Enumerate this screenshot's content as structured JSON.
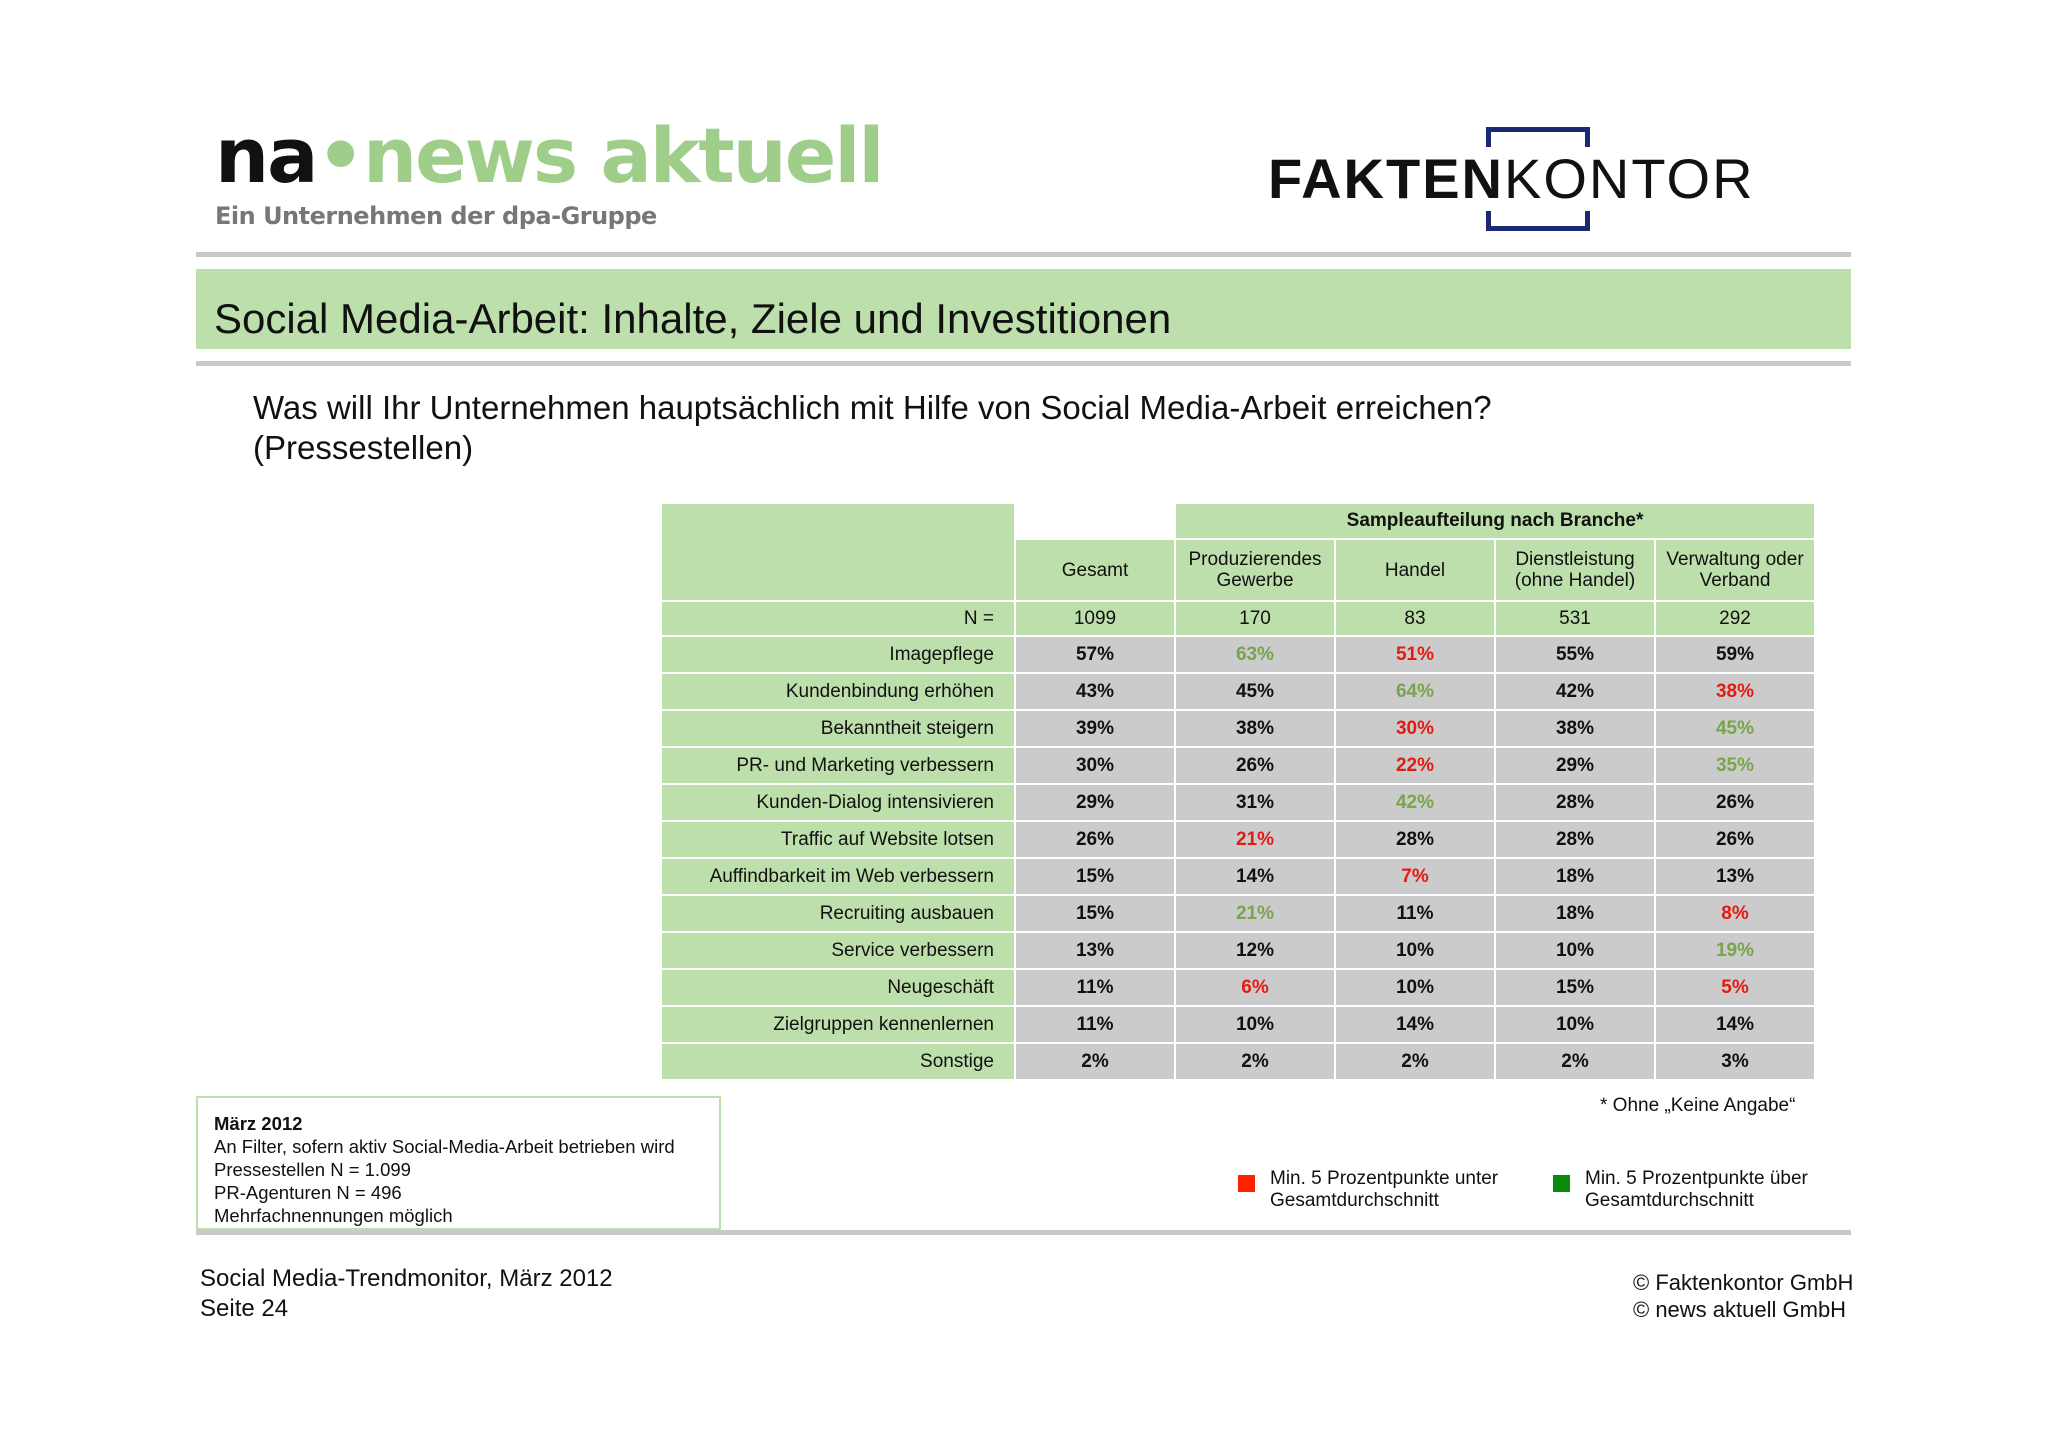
{
  "logos": {
    "news_aktuell": {
      "na": "na",
      "dot": "•",
      "name": "news aktuell",
      "tagline": "Ein Unternehmen der dpa-Gruppe"
    },
    "faktenkontor": {
      "bold": "FAKTEN",
      "light": "KONTOR",
      "brand_color": "#1b2873"
    }
  },
  "title": "Social Media-Arbeit: Inhalte, Ziele und Investitionen",
  "question": {
    "line1": "Was will Ihr Unternehmen hauptsächlich mit Hilfe von Social Media-Arbeit erreichen?",
    "line2": "(Pressestellen)"
  },
  "table": {
    "group_header": "Sampleaufteilung nach Branche*",
    "columns": [
      {
        "line1": "Gesamt",
        "line2": ""
      },
      {
        "line1": "Produzierendes",
        "line2": "Gewerbe"
      },
      {
        "line1": "Handel",
        "line2": ""
      },
      {
        "line1": "Dienstleistung",
        "line2": "(ohne Handel)"
      },
      {
        "line1": "Verwaltung oder",
        "line2": "Verband"
      }
    ],
    "n_label": "N =",
    "n_values": [
      "1099",
      "170",
      "83",
      "531",
      "292"
    ],
    "rows": [
      {
        "label": "Imagepflege",
        "values": [
          "57%",
          "63%",
          "51%",
          "55%",
          "59%"
        ],
        "marks": [
          "",
          "g",
          "r",
          "",
          ""
        ]
      },
      {
        "label": "Kundenbindung erhöhen",
        "values": [
          "43%",
          "45%",
          "64%",
          "42%",
          "38%"
        ],
        "marks": [
          "",
          "",
          "g",
          "",
          "r"
        ]
      },
      {
        "label": "Bekanntheit steigern",
        "values": [
          "39%",
          "38%",
          "30%",
          "38%",
          "45%"
        ],
        "marks": [
          "",
          "",
          "r",
          "",
          "g"
        ]
      },
      {
        "label": "PR- und Marketing verbessern",
        "values": [
          "30%",
          "26%",
          "22%",
          "29%",
          "35%"
        ],
        "marks": [
          "",
          "",
          "r",
          "",
          "g"
        ]
      },
      {
        "label": "Kunden-Dialog intensivieren",
        "values": [
          "29%",
          "31%",
          "42%",
          "28%",
          "26%"
        ],
        "marks": [
          "",
          "",
          "g",
          "",
          ""
        ]
      },
      {
        "label": "Traffic auf Website lotsen",
        "values": [
          "26%",
          "21%",
          "28%",
          "28%",
          "26%"
        ],
        "marks": [
          "",
          "r",
          "",
          "",
          ""
        ]
      },
      {
        "label": "Auffindbarkeit im Web verbessern",
        "values": [
          "15%",
          "14%",
          "7%",
          "18%",
          "13%"
        ],
        "marks": [
          "",
          "",
          "r",
          "",
          ""
        ]
      },
      {
        "label": "Recruiting ausbauen",
        "values": [
          "15%",
          "21%",
          "11%",
          "18%",
          "8%"
        ],
        "marks": [
          "",
          "g",
          "",
          "",
          "r"
        ]
      },
      {
        "label": "Service verbessern",
        "values": [
          "13%",
          "12%",
          "10%",
          "10%",
          "19%"
        ],
        "marks": [
          "",
          "",
          "",
          "",
          "g"
        ]
      },
      {
        "label": "Neugeschäft",
        "values": [
          "11%",
          "6%",
          "10%",
          "15%",
          "5%"
        ],
        "marks": [
          "",
          "r",
          "",
          "",
          "r"
        ]
      },
      {
        "label": "Zielgruppen kennenlernen",
        "values": [
          "11%",
          "10%",
          "14%",
          "10%",
          "14%"
        ],
        "marks": [
          "",
          "",
          "",
          "",
          ""
        ]
      },
      {
        "label": "Sonstige",
        "values": [
          "2%",
          "2%",
          "2%",
          "2%",
          "3%"
        ],
        "marks": [
          "",
          "",
          "",
          "",
          ""
        ]
      }
    ]
  },
  "footnote": "* Ohne „Keine Angabe“",
  "info": {
    "date": "März 2012",
    "lines": [
      "An Filter, sofern aktiv Social-Media-Arbeit betrieben wird",
      "Pressestellen N = 1.099",
      "PR-Agenturen N = 496",
      "Mehrfachnennungen möglich"
    ]
  },
  "legend": {
    "below": {
      "line1": "Min. 5 Prozentpunkte unter",
      "line2": "Gesamtdurchschnitt",
      "color": "#ff2200"
    },
    "above": {
      "line1": "Min. 5 Prozentpunkte über",
      "line2": "Gesamtdurchschnitt",
      "color": "#0a8a0a"
    }
  },
  "footer": {
    "left_line1": "Social Media-Trendmonitor, März 2012",
    "left_line2": "Seite 24",
    "right_line1": "© Faktenkontor GmbH",
    "right_line2": "© news aktuell GmbH"
  }
}
